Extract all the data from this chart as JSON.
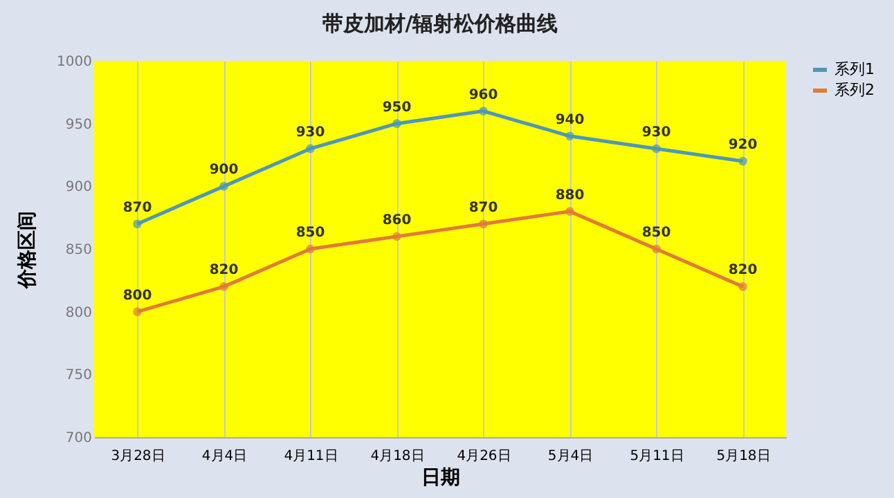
{
  "chart_data": {
    "type": "line",
    "title": "带皮加材/辐射松价格曲线",
    "xlabel": "日期",
    "ylabel": "价格区间",
    "categories": [
      "3月28日",
      "4月4日",
      "4月11日",
      "4月18日",
      "4月26日",
      "5月4日",
      "5月11日",
      "5月18日"
    ],
    "series": [
      {
        "name": "系列1",
        "color": "#4f97b8",
        "values": [
          870,
          900,
          930,
          950,
          960,
          940,
          930,
          920
        ]
      },
      {
        "name": "系列2",
        "color": "#e07b39",
        "values": [
          800,
          820,
          850,
          860,
          870,
          880,
          850,
          820
        ]
      }
    ],
    "ylim": [
      700,
      1000
    ],
    "yticks": [
      700,
      750,
      800,
      850,
      900,
      950,
      1000
    ],
    "grid": "x",
    "legend": "right",
    "marker": "circle",
    "line_style": "solid",
    "data_labels": true
  }
}
